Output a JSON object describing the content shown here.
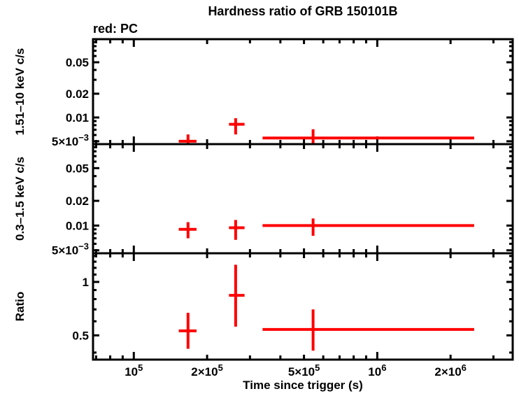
{
  "chart_data": {
    "type": "scatter",
    "title": "Hardness ratio of GRB 150101B",
    "annotation": "red: PC",
    "xlabel": "Time since trigger (s)",
    "xscale": "log",
    "xlim": [
      68000,
      3600000
    ],
    "series_color": "#ff0000",
    "background": "#ffffff",
    "xticks": [
      {
        "v": 70000
      },
      {
        "v": 80000
      },
      {
        "v": 90000
      },
      {
        "v": 100000,
        "major": true,
        "label": {
          "text": "10",
          "sup": "5"
        }
      },
      {
        "v": 200000,
        "label": {
          "text": "2×10",
          "sup": "5"
        }
      },
      {
        "v": 300000
      },
      {
        "v": 400000
      },
      {
        "v": 500000,
        "label": {
          "text": "5×10",
          "sup": "5"
        }
      },
      {
        "v": 600000
      },
      {
        "v": 700000
      },
      {
        "v": 800000
      },
      {
        "v": 900000
      },
      {
        "v": 1000000,
        "major": true,
        "label": {
          "text": "10",
          "sup": "6"
        }
      },
      {
        "v": 2000000,
        "label": {
          "text": "2×10",
          "sup": "6"
        }
      },
      {
        "v": 3000000
      }
    ],
    "panels": [
      {
        "name": "hard-band",
        "ylabel": "1.51–10 keV c/s",
        "yscale": "log",
        "ylim": [
          0.0046,
          0.098
        ],
        "yticks": [
          {
            "v": 0.005,
            "label": {
              "text": "5×10",
              "sup": "−3"
            }
          },
          {
            "v": 0.006
          },
          {
            "v": 0.007
          },
          {
            "v": 0.008
          },
          {
            "v": 0.009
          },
          {
            "v": 0.01,
            "major": true,
            "label": {
              "text": "0.01"
            }
          },
          {
            "v": 0.02,
            "label": {
              "text": "0.02"
            }
          },
          {
            "v": 0.03
          },
          {
            "v": 0.04
          },
          {
            "v": 0.05,
            "label": {
              "text": "0.05"
            }
          },
          {
            "v": 0.06
          },
          {
            "v": 0.07
          },
          {
            "v": 0.08
          },
          {
            "v": 0.09
          }
        ],
        "points": [
          {
            "x": 167000,
            "xlo": 153000,
            "xhi": 181000,
            "y": 0.005,
            "ylo": 0.0044,
            "yhi": 0.0061
          },
          {
            "x": 262000,
            "xlo": 246000,
            "xhi": 285000,
            "y": 0.0082,
            "ylo": 0.0061,
            "yhi": 0.0098
          },
          {
            "x": 545000,
            "xlo": 338000,
            "xhi": 2500000,
            "y": 0.0055,
            "ylo": 0.0044,
            "yhi": 0.0071
          }
        ]
      },
      {
        "name": "soft-band",
        "ylabel": "0.3–1.5 keV c/s",
        "yscale": "log",
        "ylim": [
          0.0046,
          0.098
        ],
        "yticks": [
          {
            "v": 0.005,
            "label": {
              "text": "5×10",
              "sup": "−3"
            }
          },
          {
            "v": 0.006
          },
          {
            "v": 0.007
          },
          {
            "v": 0.008
          },
          {
            "v": 0.009
          },
          {
            "v": 0.01,
            "major": true,
            "label": {
              "text": "0.01"
            }
          },
          {
            "v": 0.02,
            "label": {
              "text": "0.02"
            }
          },
          {
            "v": 0.03
          },
          {
            "v": 0.04
          },
          {
            "v": 0.05,
            "label": {
              "text": "0.05"
            }
          },
          {
            "v": 0.06
          },
          {
            "v": 0.07
          },
          {
            "v": 0.08
          },
          {
            "v": 0.09
          }
        ],
        "points": [
          {
            "x": 167000,
            "xlo": 153000,
            "xhi": 181000,
            "y": 0.009,
            "ylo": 0.007,
            "yhi": 0.011
          },
          {
            "x": 262000,
            "xlo": 246000,
            "xhi": 285000,
            "y": 0.0094,
            "ylo": 0.0067,
            "yhi": 0.0117
          },
          {
            "x": 545000,
            "xlo": 338000,
            "xhi": 2500000,
            "y": 0.01,
            "ylo": 0.0075,
            "yhi": 0.0122
          }
        ]
      },
      {
        "name": "ratio",
        "ylabel": "Ratio",
        "yscale": "log",
        "ylim": [
          0.365,
          1.45
        ],
        "yticks": [
          {
            "v": 0.4
          },
          {
            "v": 0.5,
            "major": true,
            "label": {
              "text": "0.5"
            }
          },
          {
            "v": 0.6
          },
          {
            "v": 0.7
          },
          {
            "v": 0.8
          },
          {
            "v": 0.9
          },
          {
            "v": 1.0,
            "major": true,
            "label": {
              "text": "1"
            }
          },
          {
            "v": 1.1
          },
          {
            "v": 1.2
          },
          {
            "v": 1.3
          },
          {
            "v": 1.4
          }
        ],
        "points": [
          {
            "x": 167000,
            "xlo": 153000,
            "xhi": 181000,
            "y": 0.53,
            "ylo": 0.42,
            "yhi": 0.67
          },
          {
            "x": 262000,
            "xlo": 246000,
            "xhi": 285000,
            "y": 0.84,
            "ylo": 0.56,
            "yhi": 1.25
          },
          {
            "x": 545000,
            "xlo": 338000,
            "xhi": 2500000,
            "y": 0.54,
            "ylo": 0.41,
            "yhi": 0.7
          }
        ]
      }
    ]
  }
}
